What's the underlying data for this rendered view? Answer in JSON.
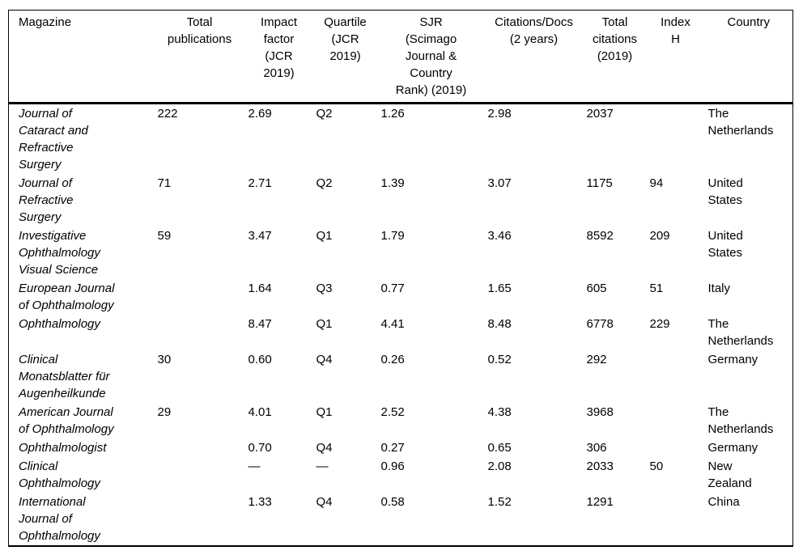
{
  "table": {
    "columns": [
      {
        "key": "magazine",
        "label": "Magazine"
      },
      {
        "key": "total_publications",
        "label": "Total\npublications"
      },
      {
        "key": "impact_factor",
        "label": "Impact\nfactor\n(JCR\n2019)"
      },
      {
        "key": "quartile",
        "label": "Quartile\n(JCR\n2019)"
      },
      {
        "key": "sjr",
        "label": "SJR\n(Scimago\nJournal &\nCountry\nRank) (2019)"
      },
      {
        "key": "citations_docs",
        "label": "Citations/Docs\n(2 years)"
      },
      {
        "key": "total_citations",
        "label": "Total\ncitations\n(2019)"
      },
      {
        "key": "index_h",
        "label": "Index\nH"
      },
      {
        "key": "country",
        "label": "Country"
      }
    ],
    "rows": [
      {
        "magazine": "Journal of\nCataract and\nRefractive\nSurgery",
        "total_publications": "222",
        "impact_factor": "2.69",
        "quartile": "Q2",
        "sjr": "1.26",
        "citations_docs": "2.98",
        "total_citations": "2037",
        "index_h": "",
        "country": "The\nNetherlands"
      },
      {
        "magazine": "Journal of\nRefractive\nSurgery",
        "total_publications": "71",
        "impact_factor": "2.71",
        "quartile": "Q2",
        "sjr": "1.39",
        "citations_docs": "3.07",
        "total_citations": "1175",
        "index_h": "94",
        "country": "United\nStates"
      },
      {
        "magazine": "Investigative\nOphthalmology\nVisual Science",
        "total_publications": "59",
        "impact_factor": "3.47",
        "quartile": "Q1",
        "sjr": "1.79",
        "citations_docs": "3.46",
        "total_citations": "8592",
        "index_h": "209",
        "country": "United\nStates"
      },
      {
        "magazine": "European Journal\nof Ophthalmology",
        "total_publications": "",
        "impact_factor": "1.64",
        "quartile": "Q3",
        "sjr": "0.77",
        "citations_docs": "1.65",
        "total_citations": "605",
        "index_h": "51",
        "country": "Italy"
      },
      {
        "magazine": "Ophthalmology",
        "total_publications": "",
        "impact_factor": "8.47",
        "quartile": "Q1",
        "sjr": "4.41",
        "citations_docs": "8.48",
        "total_citations": "6778",
        "index_h": "229",
        "country": "The\nNetherlands"
      },
      {
        "magazine": "Clinical\nMonatsblatter für\nAugenheilkunde",
        "total_publications": "30",
        "impact_factor": "0.60",
        "quartile": "Q4",
        "sjr": "0.26",
        "citations_docs": "0.52",
        "total_citations": "292",
        "index_h": "",
        "country": "Germany"
      },
      {
        "magazine": "American Journal\nof Ophthalmology",
        "total_publications": "29",
        "impact_factor": "4.01",
        "quartile": "Q1",
        "sjr": "2.52",
        "citations_docs": "4.38",
        "total_citations": "3968",
        "index_h": "",
        "country": "The\nNetherlands"
      },
      {
        "magazine": "Ophthalmologist",
        "total_publications": "",
        "impact_factor": "0.70",
        "quartile": "Q4",
        "sjr": "0.27",
        "citations_docs": "0.65",
        "total_citations": "306",
        "index_h": "",
        "country": "Germany"
      },
      {
        "magazine": "Clinical\nOphthalmology",
        "total_publications": "",
        "impact_factor": "—",
        "quartile": "—",
        "sjr": "0.96",
        "citations_docs": "2.08",
        "total_citations": "2033",
        "index_h": "50",
        "country": "New\nZealand"
      },
      {
        "magazine": "International\nJournal of\nOphthalmology",
        "total_publications": "",
        "impact_factor": "1.33",
        "quartile": "Q4",
        "sjr": "0.58",
        "citations_docs": "1.52",
        "total_citations": "1291",
        "index_h": "",
        "country": "China"
      }
    ],
    "colors": {
      "background": "#ffffff",
      "text": "#000000",
      "rule": "#000000"
    }
  }
}
